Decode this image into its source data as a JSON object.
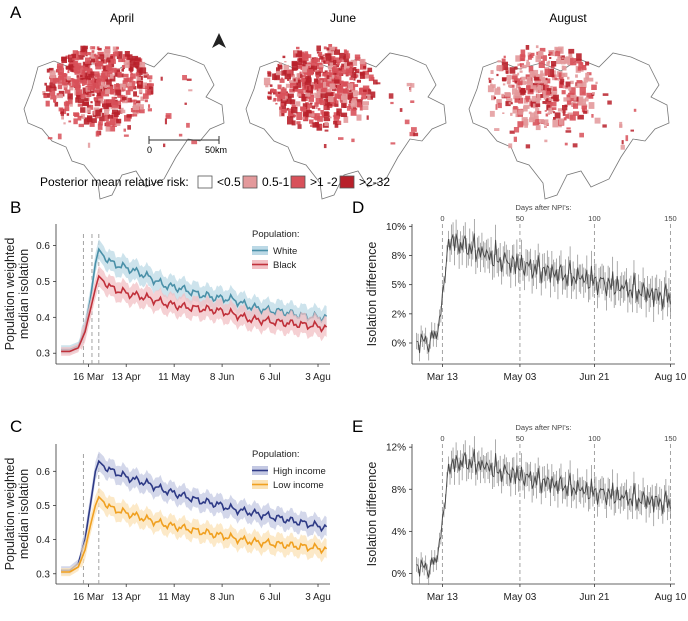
{
  "panel_labels": [
    "A",
    "B",
    "C",
    "D",
    "E"
  ],
  "maps": {
    "titles": [
      "April",
      "June",
      "August"
    ],
    "scale_bar": {
      "start": "0",
      "end": "50km"
    },
    "legend": {
      "title": "Posterior mean relative risk:",
      "items": [
        {
          "label": "<0.5",
          "color": "#ffffff"
        },
        {
          "label": "0.5-1",
          "color": "#e3999b"
        },
        {
          "label": ">1 -2",
          "color": "#d8515a"
        },
        {
          "label": ">2-32",
          "color": "#b8202a"
        }
      ]
    }
  },
  "chart_data": [
    {
      "panel": "B",
      "type": "line",
      "ylabel": [
        "Population weighted",
        "median isolation"
      ],
      "x_ticks": [
        "16 Mar",
        "13 Apr",
        "11 May",
        "8 Jun",
        "6 Jul",
        "3 Agu"
      ],
      "y_ticks": [
        "0.3",
        "0.4",
        "0.5",
        "0.6"
      ],
      "ylim": [
        0.27,
        0.66
      ],
      "legend_title": "Population:",
      "series": [
        {
          "name": "White",
          "color": "#4a90a8",
          "band": "#bcd9e6",
          "x": [
            0,
            5,
            10,
            14,
            17,
            20,
            22,
            25,
            30,
            40,
            50,
            60,
            70,
            80,
            90,
            100,
            110,
            120,
            130,
            140,
            150,
            155
          ],
          "y": [
            0.31,
            0.31,
            0.32,
            0.37,
            0.45,
            0.55,
            0.59,
            0.57,
            0.55,
            0.535,
            0.515,
            0.49,
            0.48,
            0.465,
            0.455,
            0.45,
            0.43,
            0.42,
            0.415,
            0.405,
            0.4,
            0.4
          ]
        },
        {
          "name": "Black",
          "color": "#c0303a",
          "band": "#f2c0c4",
          "x": [
            0,
            5,
            10,
            14,
            17,
            20,
            22,
            25,
            30,
            40,
            50,
            60,
            70,
            80,
            90,
            100,
            110,
            120,
            130,
            140,
            150,
            155
          ],
          "y": [
            0.305,
            0.305,
            0.315,
            0.36,
            0.42,
            0.48,
            0.515,
            0.5,
            0.48,
            0.465,
            0.455,
            0.44,
            0.43,
            0.425,
            0.42,
            0.41,
            0.395,
            0.39,
            0.385,
            0.38,
            0.375,
            0.37
          ]
        }
      ]
    },
    {
      "panel": "C",
      "type": "line",
      "ylabel": [
        "Population weighted",
        "median isolation"
      ],
      "x_ticks": [
        "16 Mar",
        "13 Apr",
        "11 May",
        "8 Jun",
        "6 Jul",
        "3 Agu"
      ],
      "y_ticks": [
        "0.3",
        "0.4",
        "0.5",
        "0.6"
      ],
      "ylim": [
        0.27,
        0.68
      ],
      "legend_title": "Population:",
      "series": [
        {
          "name": "High income",
          "color": "#2e3a86",
          "band": "#c4c9e3",
          "x": [
            0,
            5,
            10,
            14,
            17,
            20,
            22,
            25,
            30,
            40,
            50,
            60,
            70,
            80,
            90,
            100,
            110,
            120,
            130,
            140,
            150,
            155
          ],
          "y": [
            0.31,
            0.31,
            0.33,
            0.4,
            0.5,
            0.6,
            0.63,
            0.615,
            0.6,
            0.58,
            0.565,
            0.545,
            0.53,
            0.515,
            0.505,
            0.49,
            0.48,
            0.47,
            0.46,
            0.45,
            0.44,
            0.435
          ]
        },
        {
          "name": "Low income",
          "color": "#f0a020",
          "band": "#fbe2b5",
          "x": [
            0,
            5,
            10,
            14,
            17,
            20,
            22,
            25,
            30,
            40,
            50,
            60,
            70,
            80,
            90,
            100,
            110,
            120,
            130,
            140,
            150,
            155
          ],
          "y": [
            0.305,
            0.305,
            0.32,
            0.37,
            0.44,
            0.5,
            0.525,
            0.51,
            0.49,
            0.475,
            0.46,
            0.445,
            0.435,
            0.425,
            0.415,
            0.405,
            0.395,
            0.39,
            0.385,
            0.38,
            0.375,
            0.37
          ]
        }
      ]
    },
    {
      "panel": "D",
      "type": "line",
      "ylabel": "Isolation difference",
      "top_axis_label": "Days after NPI's:",
      "top_ticks": [
        "0",
        "50",
        "100",
        "150"
      ],
      "x_ticks": [
        "Mar 13",
        "May 03",
        "Jun 21",
        "Aug 10"
      ],
      "y_ticks": [
        "0%",
        "2%",
        "5%",
        "8%",
        "10%"
      ],
      "ylim": [
        -1.8,
        10.2
      ],
      "series": [
        {
          "color": "#444444",
          "x": [
            -17,
            -12,
            -8,
            -5,
            -2,
            0,
            2,
            4,
            6,
            10,
            15,
            20,
            30,
            40,
            50,
            60,
            70,
            80,
            90,
            100,
            110,
            120,
            130,
            140,
            150
          ],
          "y": [
            -0.3,
            0.2,
            -0.2,
            0.7,
            1.5,
            3.5,
            6.5,
            8.3,
            8.7,
            8.4,
            8.2,
            8.0,
            7.4,
            6.9,
            6.6,
            6.3,
            6.0,
            5.7,
            5.5,
            5.2,
            4.9,
            4.6,
            4.3,
            4.0,
            3.8
          ]
        }
      ]
    },
    {
      "panel": "E",
      "type": "line",
      "ylabel": "Isolation difference",
      "top_axis_label": "Days after NPI's:",
      "top_ticks": [
        "0",
        "50",
        "100",
        "150"
      ],
      "x_ticks": [
        "Mar 13",
        "May 03",
        "Jun 21",
        "Aug 10"
      ],
      "y_ticks": [
        "0%",
        "4%",
        "8%",
        "12%"
      ],
      "ylim": [
        -1.0,
        12.3
      ],
      "series": [
        {
          "color": "#444444",
          "x": [
            -17,
            -12,
            -8,
            -5,
            -2,
            0,
            2,
            4,
            6,
            10,
            15,
            20,
            30,
            40,
            50,
            60,
            70,
            80,
            90,
            100,
            110,
            120,
            130,
            140,
            150
          ],
          "y": [
            0.4,
            0.6,
            0.2,
            1.2,
            2.5,
            4.5,
            7.5,
            9.8,
            10.2,
            10.4,
            10.5,
            10.4,
            10.0,
            9.5,
            9.2,
            8.8,
            8.5,
            8.2,
            7.9,
            7.6,
            7.4,
            7.1,
            6.9,
            6.7,
            6.6
          ]
        }
      ]
    }
  ]
}
